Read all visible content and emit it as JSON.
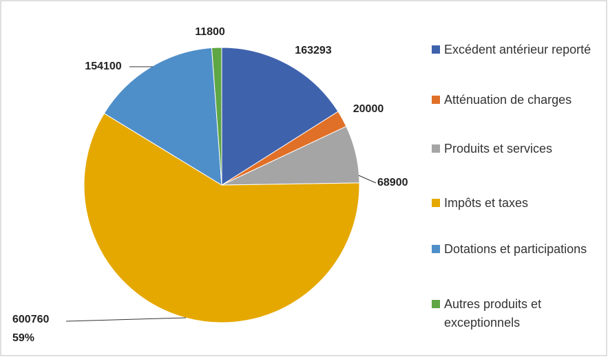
{
  "chart_data": {
    "type": "pie",
    "categories": [
      "Excédent antérieur reporté",
      "Atténuation de charges",
      "Produits et services",
      "Impôts et taxes",
      "Dotations et participations",
      "Autres produits et exceptionnels"
    ],
    "values": [
      163293,
      20000,
      68900,
      600760,
      154100,
      11800
    ],
    "percent_labels": [
      null,
      null,
      null,
      "59%",
      null,
      null
    ],
    "colors": [
      "#3f62ad",
      "#e07027",
      "#a5a5a5",
      "#e5a800",
      "#4f8fc9",
      "#5fa645"
    ],
    "legend": "right"
  }
}
